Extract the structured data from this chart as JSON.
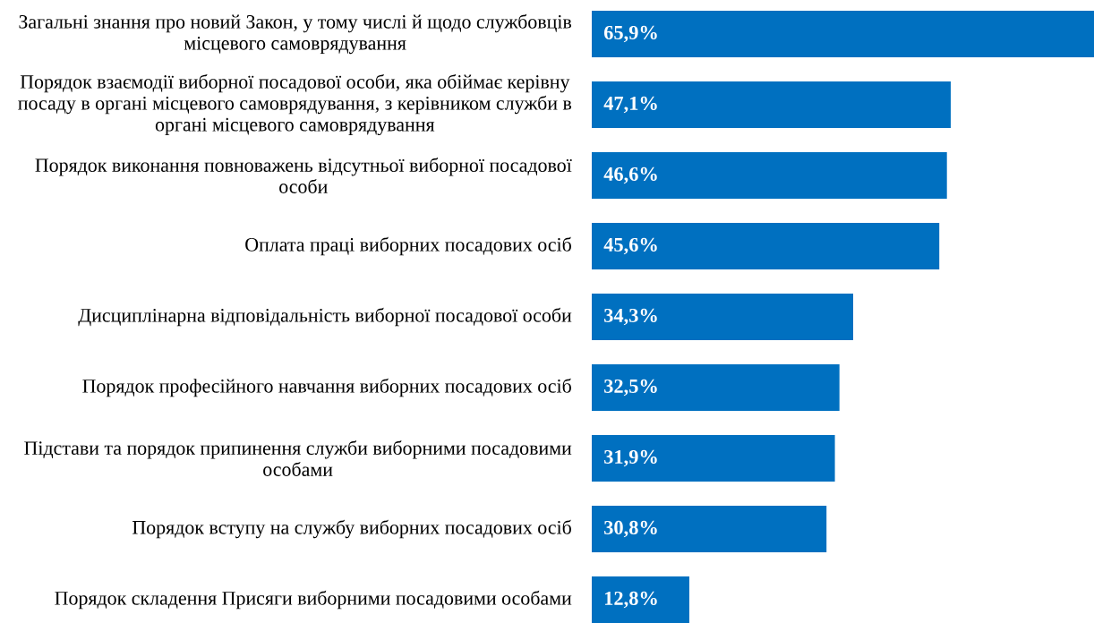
{
  "chart_data": {
    "type": "bar",
    "orientation": "horizontal",
    "categories": [
      "Загальні знання про новий Закон, у тому числі й щодо службовців місцевого самоврядування",
      "Порядок взаємодії виборної посадової особи, яка обіймає керівну посаду в органі місцевого самоврядування, з керівником служби в органі місцевого самоврядування",
      "Порядок виконання повноважень відсутньої виборної посадової особи",
      "Оплата праці виборних посадових осіб",
      "Дисциплінарна відповідальність виборної посадової особи",
      "Порядок професійного навчання виборних посадових осіб",
      "Підстави та порядок припинення служби виборними посадовими особами",
      "Порядок вступу на службу виборних посадових осіб",
      "Порядок складення Присяги виборними посадовими особами"
    ],
    "values": [
      65.9,
      47.1,
      46.6,
      45.6,
      34.3,
      32.5,
      31.9,
      30.8,
      12.8
    ],
    "value_labels": [
      "65,9%",
      "47,1%",
      "46,6%",
      "45,6%",
      "34,3%",
      "32,5%",
      "31,9%",
      "30,8%",
      "12,8%"
    ],
    "color": "#0070c0",
    "xlim": [
      0,
      65.9
    ],
    "tick_labels": "y"
  }
}
